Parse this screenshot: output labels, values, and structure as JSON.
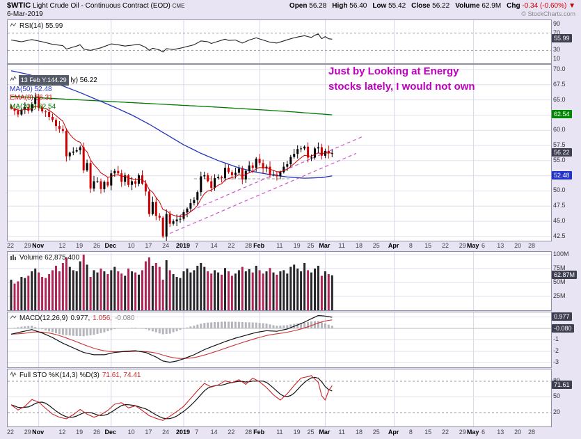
{
  "header": {
    "symbol": "$WTIC",
    "title": "Light Crude Oil - Continuous Contract (EOD)",
    "exchange": "CME",
    "date": "6-Mar-2019",
    "copyright": "© StockCharts.com",
    "quote": {
      "open_label": "Open",
      "open": "56.28",
      "high_label": "High",
      "high": "56.40",
      "low_label": "Low",
      "low": "55.42",
      "close_label": "Close",
      "close": "56.22",
      "volume_label": "Volume",
      "volume": "62.9M",
      "chg_label": "Chg",
      "chg": "-0.34 (-0.60%)",
      "chg_arrow": "▼"
    }
  },
  "tooltip": {
    "text": "13 Feb Y:144.29"
  },
  "main_legend": {
    "partial": "ly) 56.22",
    "ma50": "MA(50) 52.48",
    "ema8": "EMA(8) 56.31",
    "ma200": "MA(200) 62.54"
  },
  "annotation": {
    "line1": "Just by Looking at Energy",
    "line2": "stocks lately, I would not own",
    "color": "#c000c0"
  },
  "panels": {
    "rsi": {
      "label": "RSI(14) 55.99",
      "callout": "55.99",
      "ticks": [
        "90",
        "70",
        "30",
        "10"
      ]
    },
    "main": {
      "ticks": [
        "70.0",
        "67.5",
        "65.0",
        "60.0",
        "57.5",
        "55.0",
        "50.0",
        "47.5",
        "45.0",
        "42.5"
      ],
      "callouts": {
        "last": "56.22",
        "ma200": "62.54",
        "ma50": "52.48"
      }
    },
    "volume": {
      "label": "Volume 62,875,400",
      "callout": "62.87M",
      "ticks": [
        "100M",
        "75M",
        "50M",
        "25M"
      ]
    },
    "macd": {
      "name": "MACD(12,26,9)",
      "values": [
        "0.977,",
        "1.056,",
        "-0.080"
      ],
      "callouts": [
        "0.977",
        "-0.080"
      ],
      "ticks": [
        "-1",
        "-2",
        "-3"
      ]
    },
    "sto": {
      "name": "Full STO %K(14,3) %D(3)",
      "values": "71.61, 74.41",
      "callout": "71.61",
      "ticks": [
        "80",
        "50",
        "20"
      ]
    }
  },
  "chart_data": {
    "type": "candlestick",
    "title": "$WTIC Light Crude Oil - Continuous Contract (EOD) CME",
    "date": "6-Mar-2019",
    "ohlc_summary": {
      "open": 56.28,
      "high": 56.4,
      "low": 55.42,
      "close": 56.22,
      "volume": "62.9M",
      "change": -0.34,
      "change_pct": "-0.60%"
    },
    "x_slots_total": 155,
    "x_labels": [
      [
        "22",
        0
      ],
      [
        "29",
        5
      ],
      [
        "Nov",
        8,
        1
      ],
      [
        "12",
        15
      ],
      [
        "19",
        20
      ],
      [
        "26",
        25
      ],
      [
        "Dec",
        29,
        1
      ],
      [
        "10",
        35
      ],
      [
        "17",
        40
      ],
      [
        "24",
        45
      ],
      [
        "2019",
        50,
        1
      ],
      [
        "7",
        54
      ],
      [
        "14",
        59
      ],
      [
        "22",
        64
      ],
      [
        "28",
        69
      ],
      [
        "Feb",
        72,
        1
      ],
      [
        "11",
        78
      ],
      [
        "19",
        83
      ],
      [
        "25",
        87
      ],
      [
        "Mar",
        91,
        1
      ],
      [
        "11",
        96
      ],
      [
        "18",
        101
      ],
      [
        "25",
        106
      ],
      [
        "Apr",
        111,
        1
      ],
      [
        "8",
        116
      ],
      [
        "15",
        121
      ],
      [
        "22",
        126
      ],
      [
        "29",
        131
      ],
      [
        "May",
        134,
        1
      ],
      [
        "6",
        137
      ],
      [
        "13",
        142
      ],
      [
        "20",
        147
      ],
      [
        "28",
        151
      ]
    ],
    "colors": {
      "up": "#000000",
      "down": "#cc0000",
      "ma50": "#2233bb",
      "ema8": "#cc0000",
      "ma200": "#007a00",
      "vol_up": "#26262b",
      "vol_down": "#b02555",
      "trendline": "#cc55cc",
      "rsi": "#222222",
      "macd_line": "#111111",
      "macd_signal": "#cc3333",
      "macd_hist": "#b5b5bd",
      "sto_k": "#cc2222",
      "sto_d": "#111111"
    },
    "price": {
      "ylim": [
        42.5,
        70
      ],
      "last": 56.22,
      "closes": [
        63.6,
        63.2,
        62.6,
        63.4,
        63.8,
        63.2,
        64.3,
        65.3,
        63.7,
        63.1,
        63.0,
        62.2,
        61.7,
        60.7,
        60.2,
        59.9,
        55.7,
        56.3,
        56.5,
        56.7,
        57.2,
        53.4,
        54.6,
        50.4,
        51.6,
        51.6,
        50.3,
        51.5,
        50.9,
        52.9,
        53.3,
        52.9,
        51.5,
        52.6,
        51.0,
        51.6,
        51.2,
        52.6,
        51.2,
        49.9,
        46.2,
        48.2,
        45.9,
        45.6,
        42.5,
        46.2,
        44.6,
        45.0,
        45.3,
        45.4,
        46.5,
        47.1,
        48.0,
        48.5,
        49.8,
        52.4,
        52.6,
        51.6,
        50.5,
        52.1,
        52.3,
        52.1,
        53.8,
        53.1,
        52.6,
        53.0,
        53.7,
        51.9,
        53.3,
        54.2,
        53.8,
        55.3,
        54.6,
        53.7,
        54.0,
        52.6,
        52.7,
        52.4,
        53.1,
        54.0,
        54.4,
        55.6,
        56.1,
        56.9,
        57.0,
        57.3,
        55.5,
        55.5,
        57.0,
        57.2,
        55.8,
        56.6,
        56.2,
        56.22
      ]
    },
    "overlays": {
      "ema8_period": 8,
      "ma50_last": 52.48,
      "ema8_last": 56.31,
      "ma200_last": 62.54,
      "ma50_sparse": [
        [
          0,
          69.8
        ],
        [
          5,
          69.2
        ],
        [
          10,
          68.3
        ],
        [
          15,
          67.3
        ],
        [
          20,
          66.2
        ],
        [
          25,
          65.0
        ],
        [
          30,
          63.8
        ],
        [
          35,
          62.5
        ],
        [
          40,
          61.0
        ],
        [
          45,
          59.3
        ],
        [
          50,
          57.6
        ],
        [
          55,
          56.2
        ],
        [
          60,
          55.0
        ],
        [
          65,
          54.0
        ],
        [
          70,
          53.2
        ],
        [
          75,
          52.7
        ],
        [
          80,
          52.3
        ],
        [
          85,
          52.1
        ],
        [
          90,
          52.2
        ],
        [
          93,
          52.48
        ]
      ],
      "ma200_sparse": [
        [
          0,
          65.6
        ],
        [
          20,
          65.0
        ],
        [
          40,
          64.4
        ],
        [
          60,
          63.8
        ],
        [
          80,
          63.1
        ],
        [
          93,
          62.54
        ]
      ]
    },
    "trendlines": {
      "magenta_dashed": [
        [
          46,
          43.0,
          100,
          56.2
        ],
        [
          49,
          46.0,
          102,
          59.0
        ]
      ],
      "gray_dashed": [
        53,
        52.0,
        81,
        52.0
      ]
    },
    "rsi": {
      "period": 14,
      "last": 55.99,
      "bands": [
        70,
        30
      ],
      "ylim": [
        0,
        100
      ],
      "points": [
        [
          0,
          54
        ],
        [
          3,
          50
        ],
        [
          6,
          55
        ],
        [
          9,
          50
        ],
        [
          12,
          44
        ],
        [
          15,
          41
        ],
        [
          16,
          33
        ],
        [
          19,
          40
        ],
        [
          20,
          43
        ],
        [
          21,
          33
        ],
        [
          23,
          30
        ],
        [
          26,
          36
        ],
        [
          29,
          45
        ],
        [
          31,
          43
        ],
        [
          33,
          40
        ],
        [
          35,
          42
        ],
        [
          37,
          44
        ],
        [
          39,
          37
        ],
        [
          40,
          30
        ],
        [
          41,
          35
        ],
        [
          43,
          31
        ],
        [
          44,
          26
        ],
        [
          45,
          34
        ],
        [
          47,
          32
        ],
        [
          49,
          35
        ],
        [
          51,
          39
        ],
        [
          53,
          43
        ],
        [
          55,
          52
        ],
        [
          57,
          50
        ],
        [
          58,
          46
        ],
        [
          60,
          51
        ],
        [
          62,
          56
        ],
        [
          63,
          53
        ],
        [
          65,
          54
        ],
        [
          67,
          47
        ],
        [
          69,
          54
        ],
        [
          71,
          59
        ],
        [
          73,
          54
        ],
        [
          75,
          49
        ],
        [
          77,
          47
        ],
        [
          79,
          52
        ],
        [
          81,
          57
        ],
        [
          83,
          61
        ],
        [
          85,
          64
        ],
        [
          87,
          60
        ],
        [
          88,
          65
        ],
        [
          89,
          68
        ],
        [
          90,
          57
        ],
        [
          91,
          62
        ],
        [
          92,
          57
        ],
        [
          93,
          56
        ]
      ]
    },
    "volume": {
      "last": 62875400,
      "ylim_millions": [
        0,
        105
      ],
      "millions": [
        55,
        48,
        52,
        60,
        58,
        62,
        70,
        75,
        68,
        60,
        58,
        65,
        72,
        80,
        70,
        85,
        95,
        78,
        72,
        70,
        88,
        100,
        82,
        60,
        72,
        68,
        75,
        70,
        65,
        72,
        78,
        70,
        66,
        62,
        75,
        70,
        68,
        64,
        72,
        88,
        95,
        80,
        85,
        78,
        55,
        90,
        72,
        65,
        60,
        58,
        70,
        75,
        68,
        72,
        80,
        85,
        78,
        70,
        66,
        72,
        68,
        64,
        76,
        70,
        62,
        66,
        72,
        78,
        70,
        74,
        68,
        80,
        72,
        66,
        70,
        76,
        68,
        64,
        70,
        72,
        66,
        78,
        82,
        75,
        70,
        85,
        72,
        68,
        75,
        80,
        62,
        70,
        65,
        62.875
      ]
    },
    "macd": {
      "params": "12,26,9",
      "last": [
        0.977,
        1.056,
        -0.08
      ],
      "ylim": [
        -3.4,
        1.4
      ],
      "points": [
        [
          0,
          -0.5
        ],
        [
          3,
          -0.3
        ],
        [
          6,
          -0.1
        ],
        [
          9,
          -0.4
        ],
        [
          12,
          -0.8
        ],
        [
          15,
          -1.3
        ],
        [
          18,
          -1.7
        ],
        [
          21,
          -2.1
        ],
        [
          24,
          -2.3
        ],
        [
          27,
          -2.3
        ],
        [
          30,
          -2.1
        ],
        [
          33,
          -2.0
        ],
        [
          36,
          -1.95
        ],
        [
          39,
          -2.1
        ],
        [
          42,
          -2.5
        ],
        [
          44,
          -2.85
        ],
        [
          46,
          -2.95
        ],
        [
          48,
          -2.85
        ],
        [
          50,
          -2.65
        ],
        [
          53,
          -2.3
        ],
        [
          56,
          -1.85
        ],
        [
          59,
          -1.5
        ],
        [
          62,
          -1.15
        ],
        [
          65,
          -0.85
        ],
        [
          68,
          -0.6
        ],
        [
          71,
          -0.35
        ],
        [
          74,
          -0.2
        ],
        [
          77,
          -0.25
        ],
        [
          80,
          -0.05
        ],
        [
          83,
          0.3
        ],
        [
          85,
          0.55
        ],
        [
          87,
          0.85
        ],
        [
          89,
          1.12
        ],
        [
          91,
          1.08
        ],
        [
          93,
          0.977
        ]
      ]
    },
    "sto": {
      "params": "%K(14,3) %D(3)",
      "last": [
        71.61,
        74.41
      ],
      "bands": [
        80,
        20
      ],
      "ylim": [
        0,
        100
      ],
      "k_points": [
        [
          0,
          35
        ],
        [
          2,
          25
        ],
        [
          4,
          32
        ],
        [
          6,
          45
        ],
        [
          8,
          40
        ],
        [
          10,
          28
        ],
        [
          12,
          17
        ],
        [
          14,
          11
        ],
        [
          16,
          8
        ],
        [
          18,
          16
        ],
        [
          20,
          26
        ],
        [
          22,
          17
        ],
        [
          24,
          11
        ],
        [
          26,
          16
        ],
        [
          28,
          24
        ],
        [
          30,
          36
        ],
        [
          32,
          39
        ],
        [
          34,
          29
        ],
        [
          36,
          33
        ],
        [
          38,
          24
        ],
        [
          40,
          14
        ],
        [
          42,
          9
        ],
        [
          44,
          5
        ],
        [
          46,
          13
        ],
        [
          48,
          22
        ],
        [
          50,
          32
        ],
        [
          52,
          47
        ],
        [
          54,
          62
        ],
        [
          56,
          76
        ],
        [
          58,
          69
        ],
        [
          60,
          73
        ],
        [
          62,
          81
        ],
        [
          64,
          77
        ],
        [
          66,
          83
        ],
        [
          68,
          74
        ],
        [
          70,
          86
        ],
        [
          72,
          79
        ],
        [
          74,
          68
        ],
        [
          76,
          54
        ],
        [
          78,
          44
        ],
        [
          80,
          56
        ],
        [
          82,
          72
        ],
        [
          84,
          86
        ],
        [
          86,
          89
        ],
        [
          87,
          91
        ],
        [
          88,
          84
        ],
        [
          89,
          78
        ],
        [
          90,
          52
        ],
        [
          91,
          44
        ],
        [
          92,
          62
        ],
        [
          93,
          71.61
        ]
      ]
    }
  }
}
